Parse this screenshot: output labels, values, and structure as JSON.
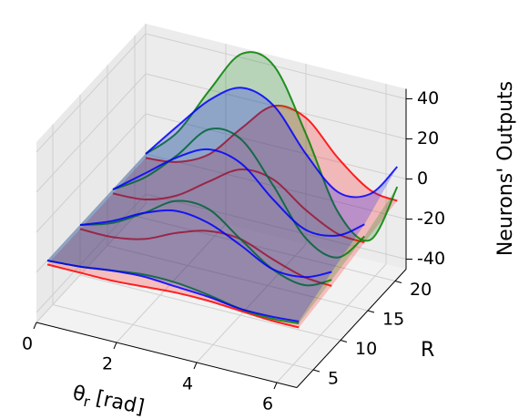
{
  "chart_data": {
    "type": "surface3d",
    "x": [
      0,
      0.8,
      1.6,
      2.4,
      3.2,
      4.0,
      4.8,
      5.6,
      6.28
    ],
    "series": [
      {
        "color": "#ff0000",
        "R": [
          22,
          16,
          10,
          4
        ],
        "values": [
          [
            -22,
            -20,
            -12,
            5,
            20,
            18,
            2,
            -10,
            -12
          ],
          [
            -22,
            -21,
            -15,
            -4,
            6,
            5,
            -6,
            -14,
            -15
          ],
          [
            -22,
            -22,
            -19,
            -12,
            -7,
            -7,
            -13,
            -18,
            -19
          ],
          [
            -22,
            -22,
            -22,
            -21,
            -20,
            -20,
            -21,
            -22,
            -22
          ]
        ]
      },
      {
        "color": "#008000",
        "R": [
          22,
          16,
          10,
          4
        ],
        "values": [
          [
            -20,
            -5,
            20,
            42,
            40,
            10,
            -25,
            -35,
            -5
          ],
          [
            -20,
            -10,
            5,
            22,
            21,
            2,
            -20,
            -26,
            -12
          ],
          [
            -20,
            -15,
            -6,
            4,
            4,
            -7,
            -18,
            -22,
            -16
          ],
          [
            -20,
            -19,
            -17,
            -15,
            -15,
            -17,
            -20,
            -21,
            -20
          ]
        ]
      },
      {
        "color": "#0000ff",
        "R": [
          22,
          16,
          10,
          4
        ],
        "values": [
          [
            -20,
            -2,
            15,
            25,
            20,
            0,
            -15,
            -12,
            5
          ],
          [
            -20,
            -8,
            4,
            12,
            9,
            -5,
            -16,
            -15,
            -6
          ],
          [
            -20,
            -14,
            -6,
            -1,
            -3,
            -10,
            -18,
            -18,
            -12
          ],
          [
            -20,
            -19,
            -17,
            -16,
            -17,
            -18,
            -20,
            -20,
            -19
          ]
        ]
      }
    ],
    "xlabel": {
      "symbol": "θ",
      "subscript": "r",
      "unit": "[rad]"
    },
    "ylabel": "R",
    "zlabel": "Neurons' Outputs",
    "xlim": [
      0,
      6.5
    ],
    "xticks": [
      0,
      2,
      4,
      6
    ],
    "ylim": [
      2,
      22
    ],
    "yticks": [
      5,
      10,
      15,
      20
    ],
    "zlim": [
      -45,
      45
    ],
    "zticks": [
      -40,
      -20,
      0,
      20,
      40
    ],
    "grid": true
  }
}
